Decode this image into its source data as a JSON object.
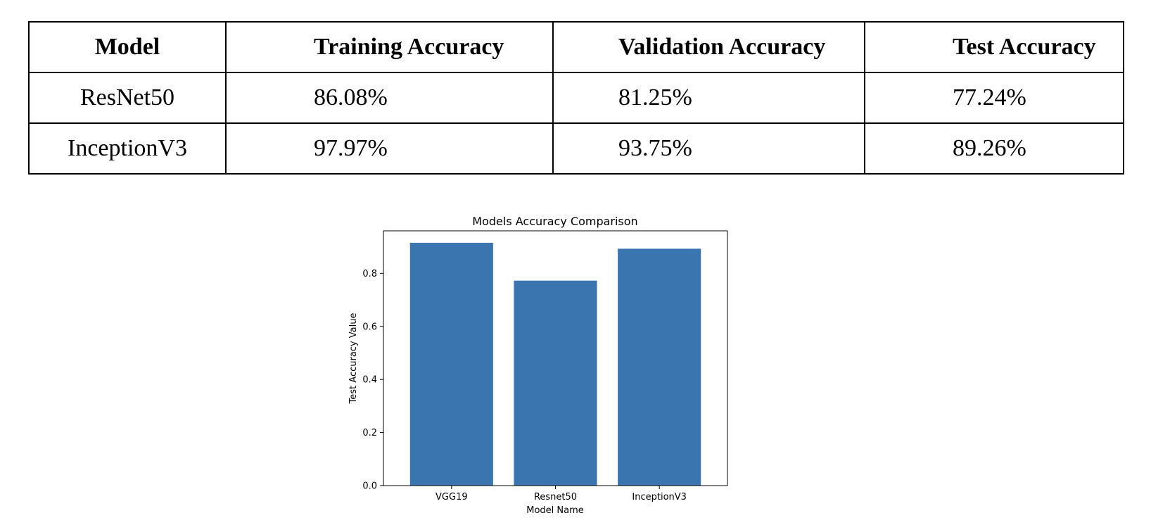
{
  "table": {
    "headers": [
      "Model",
      "Training Accuracy",
      "Validation Accuracy",
      "Test Accuracy"
    ],
    "rows": [
      [
        "ResNet50",
        "86.08%",
        "81.25%",
        "77.24%"
      ],
      [
        "InceptionV3",
        "97.97%",
        "93.75%",
        "89.26%"
      ]
    ]
  },
  "chart_data": {
    "type": "bar",
    "title": "Models Accuracy Comparison",
    "xlabel": "Model Name",
    "ylabel": "Test Accuracy Value",
    "categories": [
      "VGG19",
      "Resnet50",
      "InceptionV3"
    ],
    "values": [
      0.915,
      0.7724,
      0.8926
    ],
    "ylim": [
      0,
      0.96
    ],
    "yticks": [
      0.0,
      0.2,
      0.4,
      0.6,
      0.8
    ],
    "yticklabels": [
      "0.0",
      "0.2",
      "0.4",
      "0.6",
      "0.8"
    ],
    "grid": false,
    "bar_color": "#3b75af"
  }
}
